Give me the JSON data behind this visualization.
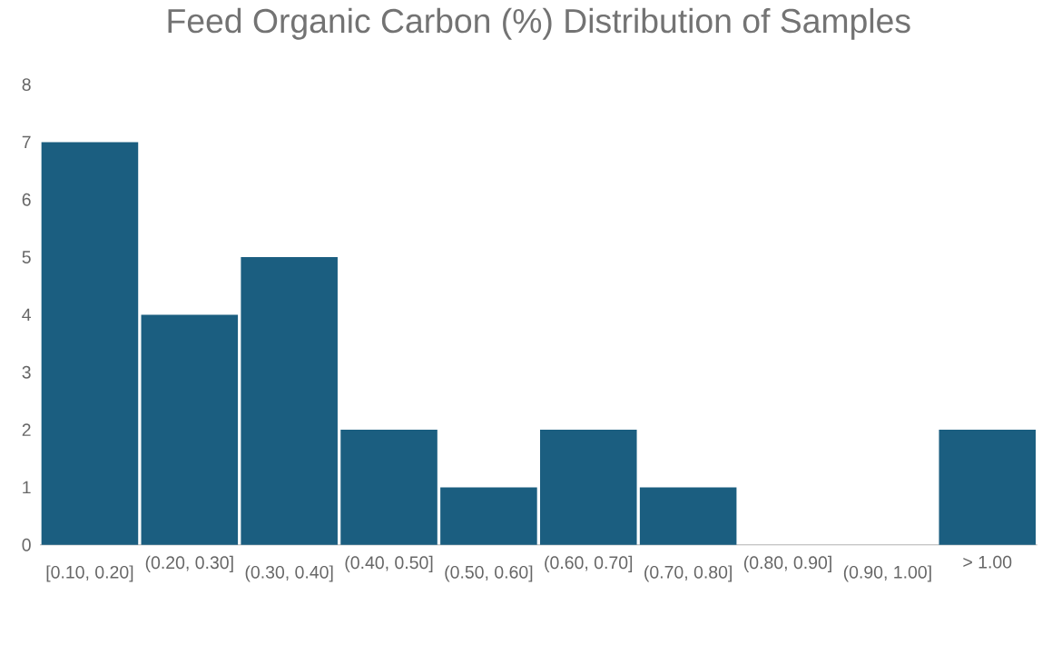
{
  "chart_data": {
    "type": "bar",
    "title": "Feed Organic Carbon (%) Distribution of Samples",
    "categories": [
      "[0.10, 0.20]",
      "(0.20, 0.30]",
      "(0.30, 0.40]",
      "(0.40, 0.50]",
      "(0.50, 0.60]",
      "(0.60, 0.70]",
      "(0.70, 0.80]",
      "(0.80, 0.90]",
      "(0.90, 1.00]",
      "> 1.00"
    ],
    "values": [
      7,
      4,
      5,
      2,
      1,
      2,
      1,
      0,
      0,
      2
    ],
    "color": "#1b5e80",
    "ylim": [
      0,
      8
    ],
    "yticks": [
      0,
      1,
      2,
      3,
      4,
      5,
      6,
      7,
      8
    ]
  }
}
